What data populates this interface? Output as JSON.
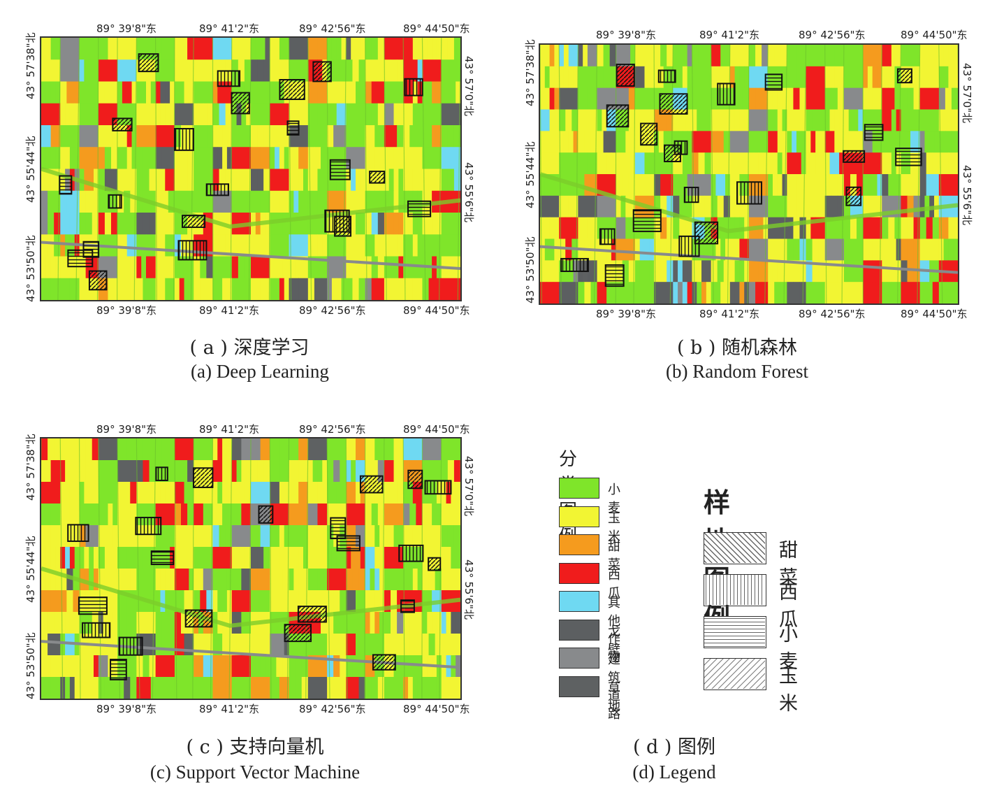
{
  "coords": {
    "top_lon": [
      "89° 39'8\"东",
      "89° 41'2\"东",
      "89° 42'56\"东",
      "89° 44'50\"东"
    ],
    "left_lat": [
      "43° 57'38\"北",
      "43° 55'44\"北",
      "43° 53'50\"北"
    ],
    "right_lat": [
      "43° 57'0\"北",
      "43° 55'6\"北"
    ]
  },
  "panels": [
    {
      "id": "a",
      "caption_cn": "( a ) 深度学习",
      "caption_en": "(a) Deep Learning"
    },
    {
      "id": "b",
      "caption_cn": "( b ) 随机森林",
      "caption_en": "(b) Random Forest"
    },
    {
      "id": "c",
      "caption_cn": "( c ) 支持向量机",
      "caption_en": "(c) Support Vector Machine"
    }
  ],
  "legend": {
    "title": "分类图例",
    "items": [
      {
        "label": "小麦",
        "color": "#7fe52a"
      },
      {
        "label": "玉米",
        "color": "#f2f533"
      },
      {
        "label": "甜菜",
        "color": "#f59b1e"
      },
      {
        "label": "西瓜",
        "color": "#f01c1c"
      },
      {
        "label": "其他作物",
        "color": "#6fd9f2"
      },
      {
        "label": "戈壁",
        "color": "#5c5f61"
      },
      {
        "label": "建筑道路",
        "color": "#888a8c"
      },
      {
        "label": "草地",
        "color": "#5e6162"
      }
    ],
    "sample_title": "样地图例",
    "samples": [
      {
        "label": "甜菜",
        "pattern": "diag-back"
      },
      {
        "label": "西瓜",
        "pattern": "vertical"
      },
      {
        "label": "小麦",
        "pattern": "horizontal"
      },
      {
        "label": "玉米",
        "pattern": "diag-fwd"
      }
    ],
    "caption_cn": "( d ) 图例",
    "caption_en": "(d) Legend"
  }
}
